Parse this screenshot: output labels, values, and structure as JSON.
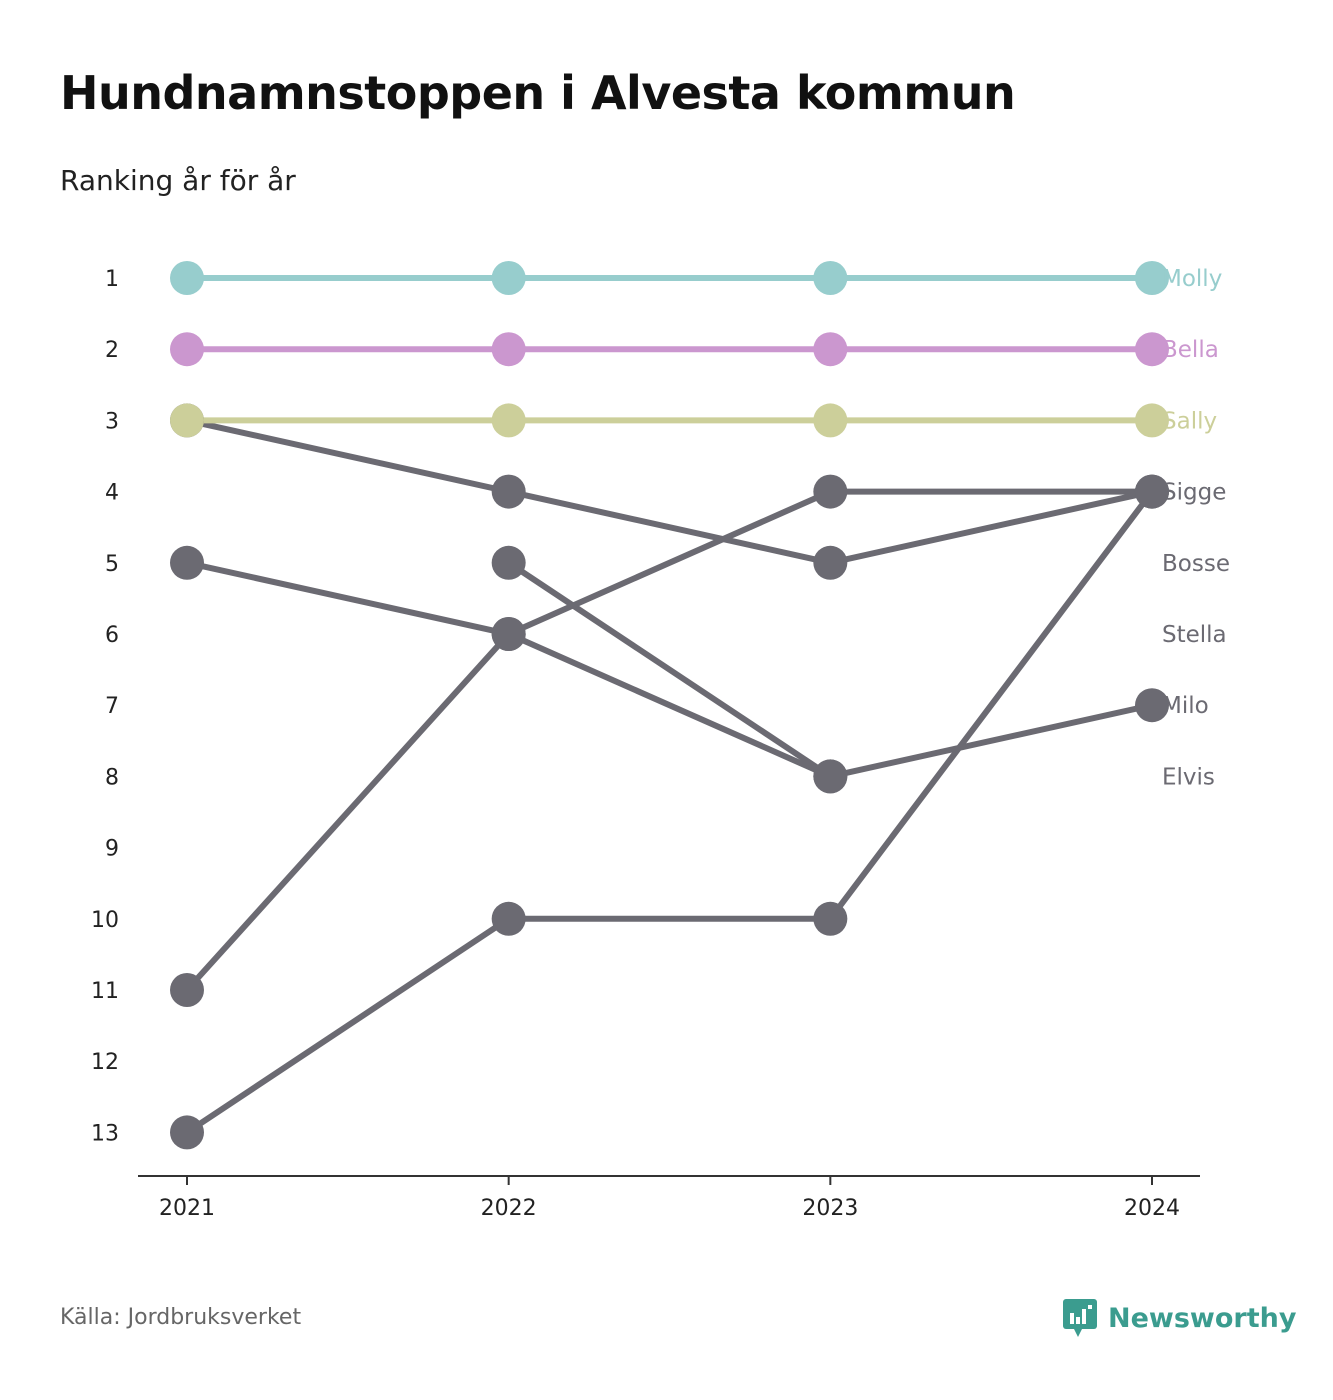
{
  "title": "Hundnamnstoppen i Alvesta kommun",
  "subtitle": "Ranking år för år",
  "source": "Källa: Jordbruksverket",
  "brand": {
    "name": "Newsworthy",
    "icon": "newsworthy-logo-icon",
    "color": "#3b9c8f"
  },
  "chart_data": {
    "type": "line",
    "x": [
      "2021",
      "2022",
      "2023",
      "2024"
    ],
    "ylim": [
      1,
      13
    ],
    "y_reversed": true,
    "y_ticks": [
      "1",
      "2",
      "3",
      "4",
      "5",
      "6",
      "7",
      "8",
      "9",
      "10",
      "11",
      "12",
      "13"
    ],
    "grid": false,
    "legend": "end-labels-right",
    "series": [
      {
        "name": "Molly",
        "values": [
          1,
          1,
          1,
          1
        ],
        "color": "#97cdcd"
      },
      {
        "name": "Bella",
        "values": [
          2,
          2,
          2,
          2
        ],
        "color": "#cb97cf"
      },
      {
        "name": "Sally",
        "values": [
          3,
          3,
          3,
          3
        ],
        "color": "#cccf9a"
      },
      {
        "name": "Sigge",
        "values": [
          11,
          6,
          4,
          4
        ],
        "color": "#6b6a72"
      },
      {
        "name": "Bosse",
        "values": [
          3,
          4,
          5,
          4
        ],
        "color": "#6b6a72"
      },
      {
        "name": "Stella",
        "values": [
          13,
          10,
          10,
          4
        ],
        "color": "#6b6a72"
      },
      {
        "name": "Milo",
        "values": [
          5,
          6,
          8,
          7
        ],
        "color": "#6b6a72"
      },
      {
        "name": "Elvis",
        "values": [
          null,
          5,
          8,
          null
        ],
        "color": "#6b6a72"
      }
    ]
  }
}
